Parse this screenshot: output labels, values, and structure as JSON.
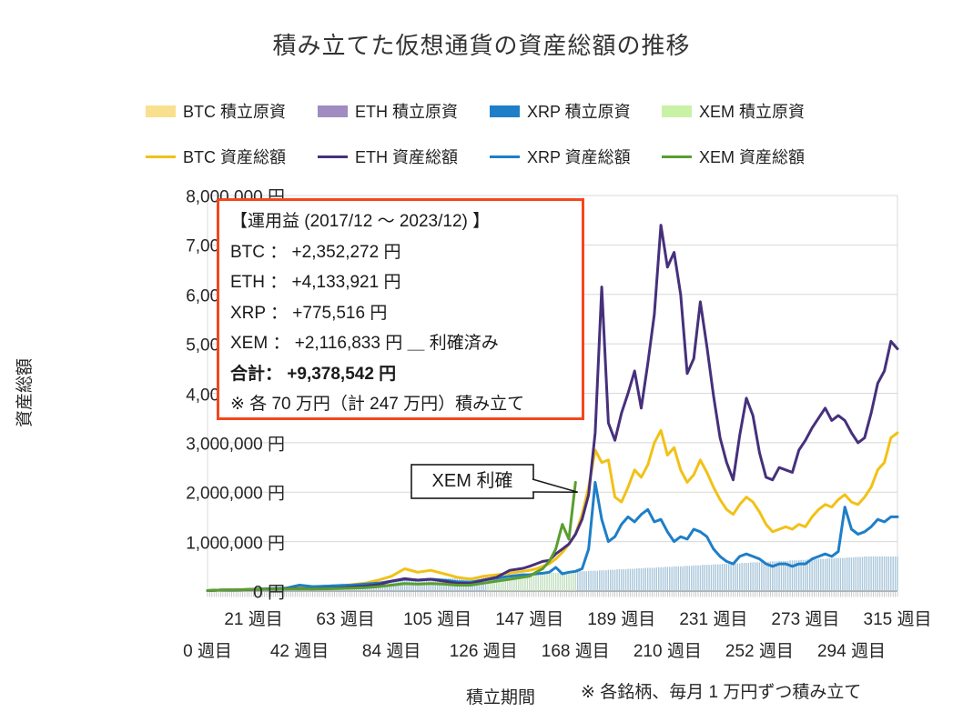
{
  "title": "積み立てた仮想通貨の資産総額の推移",
  "legend": {
    "principal_items": [
      {
        "label": "BTC  積立原資",
        "color": "#F8E08E"
      },
      {
        "label": "ETH  積立原資",
        "color": "#A08CC0"
      },
      {
        "label": "XRP  積立原資",
        "color": "#1E7EC8"
      },
      {
        "label": "XEM  積立原資",
        "color": "#C9F2A6"
      }
    ],
    "total_items": [
      {
        "label": "BTC  資産総額",
        "color": "#F2C117"
      },
      {
        "label": "ETH  資産総額",
        "color": "#46307C"
      },
      {
        "label": "XRP  資産総額",
        "color": "#1E7EC8"
      },
      {
        "label": "XEM  資産総額",
        "color": "#5A9E2F"
      }
    ]
  },
  "y_axis": {
    "title": "資産総額",
    "tick_labels": [
      "8,000,000 円",
      "7,000,000 円",
      "6,000,000 円",
      "5,000,000 円",
      "4,000,000 円",
      "3,000,000 円",
      "2,000,000 円",
      "1,000,000 円",
      "0 円"
    ]
  },
  "x_axis": {
    "title": "積立期間",
    "row1_weeks": [
      21,
      63,
      105,
      147,
      189,
      231,
      273,
      315
    ],
    "row1_labels": [
      "21 週目",
      "63 週目",
      "105 週目",
      "147 週目",
      "189 週目",
      "231 週目",
      "273 週目",
      "315 週目"
    ],
    "row2_weeks": [
      0,
      42,
      84,
      126,
      168,
      210,
      252,
      294
    ],
    "row2_labels": [
      "0 週目",
      "42 週目",
      "84 週目",
      "126 週目",
      "168 週目",
      "210 週目",
      "252 週目",
      "294 週目"
    ]
  },
  "annotation_box": {
    "border_color": "#f4461e",
    "lines": [
      "【運用益 (2017/12 ～ 2023/12) 】",
      "BTC ：  +2,352,272 円",
      "ETH ：  +4,133,921 円",
      "XRP ：  +775,516 円",
      "XEM ：  +2,116,833 円 ＿ 利確済み",
      "合計：  +9,378,542 円",
      "※ 各 70 万円（計 247 万円）積み立て"
    ]
  },
  "callout": {
    "label": "XEM 利確",
    "points_to_week": 169,
    "points_to_value": 2000000
  },
  "footnote": "※ 各銘柄、毎月 1 万円ずつ積み立て",
  "chart_data": {
    "type": "line",
    "title": "積み立てた仮想通貨の資産総額の推移",
    "xlabel": "積立期間",
    "ylabel": "資産総額",
    "x_unit": "週目",
    "y_unit_jpy": 10000,
    "x_range": [
      0,
      315
    ],
    "y_range_jpy": [
      0,
      8000000
    ],
    "grid": "horizontal",
    "legend_position": "top",
    "x": [
      0,
      6,
      12,
      18,
      24,
      30,
      36,
      42,
      48,
      54,
      60,
      66,
      72,
      78,
      84,
      90,
      96,
      102,
      108,
      114,
      120,
      126,
      132,
      138,
      144,
      147,
      150,
      153,
      156,
      159,
      162,
      165,
      168,
      171,
      174,
      177,
      180,
      183,
      186,
      189,
      192,
      195,
      198,
      201,
      204,
      207,
      210,
      213,
      216,
      219,
      222,
      225,
      228,
      231,
      234,
      237,
      240,
      243,
      246,
      249,
      252,
      255,
      258,
      261,
      264,
      267,
      270,
      273,
      276,
      279,
      282,
      285,
      288,
      291,
      294,
      297,
      300,
      303,
      306,
      309,
      312,
      315
    ],
    "series": [
      {
        "name": "BTC 資産総額",
        "color": "#F2C117",
        "z": 1,
        "values": [
          1,
          2,
          2.5,
          3.5,
          4.5,
          5,
          6,
          6.5,
          6,
          7.5,
          10,
          13,
          16,
          22,
          30,
          45,
          38,
          42,
          35,
          28,
          24,
          30,
          33,
          36,
          40,
          42,
          45,
          50,
          55,
          65,
          78,
          95,
          115,
          155,
          210,
          285,
          260,
          265,
          190,
          180,
          210,
          245,
          230,
          255,
          300,
          325,
          275,
          290,
          245,
          220,
          235,
          265,
          240,
          210,
          185,
          165,
          155,
          175,
          190,
          180,
          160,
          135,
          120,
          125,
          130,
          125,
          135,
          130,
          150,
          165,
          175,
          170,
          185,
          195,
          180,
          175,
          190,
          210,
          245,
          260,
          310,
          320
        ]
      },
      {
        "name": "ETH 資産総額",
        "color": "#46307C",
        "z": 3,
        "values": [
          1,
          2,
          2,
          3,
          3.5,
          4,
          4.5,
          5,
          4.5,
          5,
          6,
          8,
          10,
          13,
          20,
          25,
          22,
          24,
          20,
          16,
          15,
          22,
          28,
          42,
          46,
          50,
          55,
          60,
          62,
          75,
          85,
          95,
          115,
          145,
          195,
          320,
          615,
          340,
          305,
          360,
          400,
          445,
          370,
          460,
          560,
          740,
          655,
          685,
          600,
          440,
          470,
          585,
          495,
          395,
          310,
          260,
          225,
          315,
          390,
          355,
          280,
          230,
          225,
          250,
          245,
          240,
          285,
          305,
          330,
          350,
          370,
          345,
          355,
          345,
          320,
          300,
          310,
          360,
          420,
          445,
          505,
          490
        ]
      },
      {
        "name": "XRP 資産総額",
        "color": "#1E7EC8",
        "z": 2,
        "values": [
          1,
          2,
          2,
          3,
          4,
          5,
          6,
          12,
          9,
          10,
          11,
          12,
          14,
          16,
          20,
          24,
          22,
          24,
          22,
          19,
          18,
          22,
          26,
          30,
          33,
          33,
          35,
          36,
          38,
          48,
          35,
          38,
          40,
          45,
          85,
          220,
          145,
          100,
          110,
          135,
          150,
          140,
          155,
          165,
          140,
          145,
          120,
          100,
          110,
          105,
          125,
          120,
          110,
          85,
          70,
          60,
          55,
          70,
          75,
          70,
          65,
          55,
          50,
          55,
          55,
          50,
          55,
          55,
          65,
          70,
          75,
          70,
          80,
          170,
          125,
          115,
          120,
          130,
          145,
          140,
          150,
          150
        ]
      },
      {
        "name": "XEM 資産総額",
        "color": "#5A9E2F",
        "z": 4,
        "x": [
          0,
          6,
          12,
          18,
          24,
          30,
          36,
          42,
          48,
          54,
          60,
          66,
          72,
          78,
          84,
          90,
          96,
          102,
          108,
          114,
          120,
          126,
          132,
          138,
          144,
          147,
          150,
          153,
          156,
          159,
          162,
          165,
          168
        ],
        "values": [
          1,
          2,
          2.5,
          3,
          3.5,
          4,
          4,
          4.5,
          4,
          4.5,
          5,
          6,
          7,
          9,
          12,
          15,
          14,
          15,
          14,
          12,
          12,
          16,
          20,
          24,
          28,
          30,
          38,
          45,
          60,
          85,
          135,
          105,
          220
        ]
      }
    ],
    "principal_bars": {
      "description": "積立原資（毎月1万円ずつ、各銘柄上限70万円、XEMは168週目で利確し積立終了）",
      "monthly_amount_jpy": 10000,
      "weeks_per_month": 4.345,
      "cap_jpy": 700000,
      "xem_stop_week": 168,
      "color_xem_phase": "#C0DFBF",
      "color_after": "#A9C6DA",
      "green_band_start_week": 128
    }
  }
}
